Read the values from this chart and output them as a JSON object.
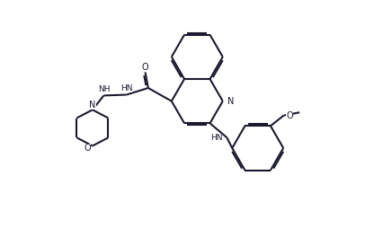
{
  "bg_color": "#ffffff",
  "line_color": "#1a1a2e",
  "bond_lw": 1.5,
  "figsize": [
    4.26,
    2.54
  ],
  "dpi": 100,
  "xlim": [
    0,
    10
  ],
  "ylim": [
    0,
    6
  ]
}
